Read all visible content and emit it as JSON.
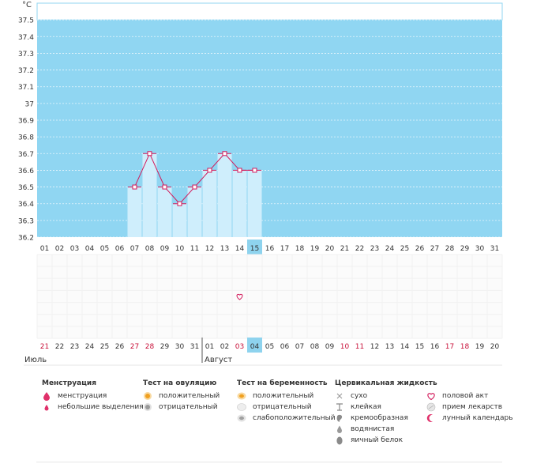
{
  "chart_data": {
    "type": "line",
    "ylabel": "°C",
    "y_ticks": [
      "37.5",
      "37.4",
      "37.3",
      "37.2",
      "37.1",
      "37",
      "36.9",
      "36.8",
      "36.7",
      "36.6",
      "36.5",
      "36.4",
      "36.3",
      "36.2"
    ],
    "ylim": [
      36.2,
      37.6
    ],
    "cycle_days": [
      "01",
      "02",
      "03",
      "04",
      "05",
      "06",
      "07",
      "08",
      "09",
      "10",
      "11",
      "12",
      "13",
      "14",
      "15",
      "16",
      "17",
      "18",
      "19",
      "20",
      "21",
      "22",
      "23",
      "24",
      "25",
      "26",
      "27",
      "28",
      "29",
      "30",
      "31"
    ],
    "temperature_points": [
      {
        "day": "07",
        "value": 36.5
      },
      {
        "day": "08",
        "value": 36.7
      },
      {
        "day": "09",
        "value": 36.5
      },
      {
        "day": "10",
        "value": 36.4
      },
      {
        "day": "11",
        "value": 36.5
      },
      {
        "day": "12",
        "value": 36.6
      },
      {
        "day": "13",
        "value": 36.7
      },
      {
        "day": "14",
        "value": 36.6
      },
      {
        "day": "15",
        "value": 36.6
      }
    ],
    "current_day": "15",
    "grid": true
  },
  "calendar": {
    "dates": [
      {
        "label": "21",
        "red": true
      },
      {
        "label": "22",
        "red": false
      },
      {
        "label": "23",
        "red": false
      },
      {
        "label": "24",
        "red": false
      },
      {
        "label": "25",
        "red": false
      },
      {
        "label": "26",
        "red": false
      },
      {
        "label": "27",
        "red": true
      },
      {
        "label": "28",
        "red": true
      },
      {
        "label": "29",
        "red": false
      },
      {
        "label": "30",
        "red": false
      },
      {
        "label": "31",
        "red": false
      },
      {
        "label": "01",
        "red": false
      },
      {
        "label": "02",
        "red": false
      },
      {
        "label": "03",
        "red": true
      },
      {
        "label": "04",
        "red": false,
        "current": true
      },
      {
        "label": "05",
        "red": false
      },
      {
        "label": "06",
        "red": false
      },
      {
        "label": "07",
        "red": false
      },
      {
        "label": "08",
        "red": false
      },
      {
        "label": "09",
        "red": false
      },
      {
        "label": "10",
        "red": true
      },
      {
        "label": "11",
        "red": true
      },
      {
        "label": "12",
        "red": false
      },
      {
        "label": "13",
        "red": false
      },
      {
        "label": "14",
        "red": false
      },
      {
        "label": "15",
        "red": false
      },
      {
        "label": "16",
        "red": false
      },
      {
        "label": "17",
        "red": true
      },
      {
        "label": "18",
        "red": true
      },
      {
        "label": "19",
        "red": false
      },
      {
        "label": "20",
        "red": false
      }
    ],
    "months": [
      {
        "label": "Июль",
        "start_index": 0
      },
      {
        "label": "Август",
        "start_index": 11
      }
    ],
    "events": [
      {
        "day_index": 13,
        "row": 3,
        "icon": "heart-icon"
      }
    ]
  },
  "legend": {
    "menstruation": {
      "title": "Менструация",
      "items": [
        {
          "label": "менструация",
          "icon": "drop-icon"
        },
        {
          "label": "небольшие выделения",
          "icon": "small-drop-icon"
        }
      ]
    },
    "ovulation_test": {
      "title": "Тест на овуляцию",
      "items": [
        {
          "label": "положительный",
          "icon": "orange-circle-icon"
        },
        {
          "label": "отрицательный",
          "icon": "gray-circle-icon"
        }
      ]
    },
    "pregnancy_test": {
      "title": "Тест на беременность",
      "items": [
        {
          "label": "положительный",
          "icon": "test-positive-icon"
        },
        {
          "label": "отрицательный",
          "icon": "test-negative-icon"
        },
        {
          "label": "слабоположительный",
          "icon": "test-weak-icon"
        }
      ]
    },
    "cervical_fluid": {
      "title": "Цервикальная жидкость",
      "items": [
        {
          "label": "сухо",
          "icon": "cross-icon"
        },
        {
          "label": "клейкая",
          "icon": "sticky-icon"
        },
        {
          "label": "кремообразная",
          "icon": "creamy-icon"
        },
        {
          "label": "водянистая",
          "icon": "watery-icon"
        },
        {
          "label": "яичный белок",
          "icon": "egg-white-icon"
        }
      ]
    },
    "other": {
      "items": [
        {
          "label": "половой акт",
          "icon": "heart-icon"
        },
        {
          "label": "прием лекарств",
          "icon": "pill-icon"
        },
        {
          "label": "лунный календарь",
          "icon": "moon-icon"
        }
      ]
    }
  },
  "colors": {
    "plot_bg": "#90d6f2",
    "bar_fill": "#cfeefc",
    "line": "#d2195a",
    "current_day_bg": "#8ed3ee",
    "red_date": "#c8123a"
  }
}
